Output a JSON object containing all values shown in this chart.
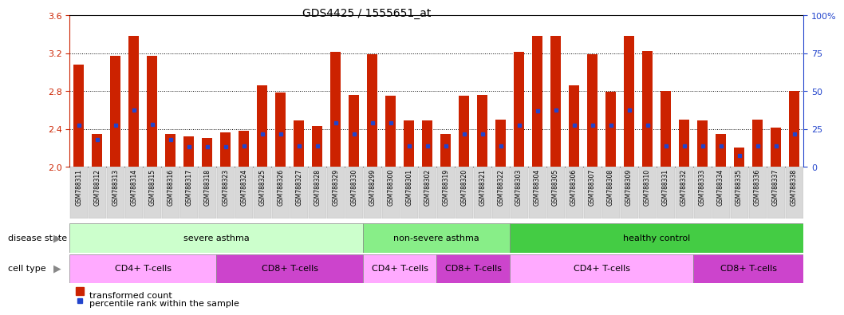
{
  "title": "GDS4425 / 1555651_at",
  "samples": [
    "GSM788311",
    "GSM788312",
    "GSM788313",
    "GSM788314",
    "GSM788315",
    "GSM788316",
    "GSM788317",
    "GSM788318",
    "GSM788323",
    "GSM788324",
    "GSM788325",
    "GSM788326",
    "GSM788327",
    "GSM788328",
    "GSM788329",
    "GSM788330",
    "GSM788299",
    "GSM788300",
    "GSM788301",
    "GSM788302",
    "GSM788319",
    "GSM788320",
    "GSM788321",
    "GSM788322",
    "GSM788303",
    "GSM788304",
    "GSM788305",
    "GSM788306",
    "GSM788307",
    "GSM788308",
    "GSM788309",
    "GSM788310",
    "GSM788331",
    "GSM788332",
    "GSM788333",
    "GSM788334",
    "GSM788335",
    "GSM788336",
    "GSM788337",
    "GSM788338"
  ],
  "bar_values": [
    3.08,
    2.35,
    3.17,
    3.38,
    3.17,
    2.35,
    2.32,
    2.3,
    2.36,
    2.38,
    2.86,
    2.78,
    2.49,
    2.43,
    3.21,
    2.76,
    3.19,
    2.75,
    2.49,
    2.49,
    2.35,
    2.75,
    2.76,
    2.5,
    3.21,
    3.38,
    3.38,
    2.86,
    3.19,
    2.79,
    3.38,
    3.22,
    2.8,
    2.5,
    2.49,
    2.35,
    2.2,
    2.5,
    2.41,
    2.8
  ],
  "percentile_values": [
    2.44,
    2.29,
    2.44,
    2.6,
    2.45,
    2.29,
    2.21,
    2.21,
    2.21,
    2.22,
    2.35,
    2.35,
    2.22,
    2.22,
    2.46,
    2.35,
    2.46,
    2.46,
    2.22,
    2.22,
    2.22,
    2.35,
    2.35,
    2.22,
    2.44,
    2.59,
    2.6,
    2.44,
    2.44,
    2.44,
    2.6,
    2.44,
    2.22,
    2.22,
    2.22,
    2.22,
    2.12,
    2.22,
    2.22,
    2.35
  ],
  "ylim_left": [
    2.0,
    3.6
  ],
  "ylim_right": [
    0,
    100
  ],
  "yticks_left": [
    2.0,
    2.4,
    2.8,
    3.2,
    3.6
  ],
  "yticks_right": [
    0,
    25,
    50,
    75,
    100
  ],
  "ytick_labels_right": [
    "0",
    "25",
    "50",
    "75",
    "100%"
  ],
  "bar_color": "#cc2200",
  "percentile_color": "#2244cc",
  "background_color": "#ffffff",
  "tick_label_bg": "#d8d8d8",
  "disease_state_groups": [
    {
      "label": "severe asthma",
      "start": 0,
      "end": 16,
      "color": "#ccffcc"
    },
    {
      "label": "non-severe asthma",
      "start": 16,
      "end": 24,
      "color": "#88ee88"
    },
    {
      "label": "healthy control",
      "start": 24,
      "end": 40,
      "color": "#44cc44"
    }
  ],
  "cell_type_groups": [
    {
      "label": "CD4+ T-cells",
      "start": 0,
      "end": 8,
      "color": "#ffaaff"
    },
    {
      "label": "CD8+ T-cells",
      "start": 8,
      "end": 16,
      "color": "#cc44cc"
    },
    {
      "label": "CD4+ T-cells",
      "start": 16,
      "end": 20,
      "color": "#ffaaff"
    },
    {
      "label": "CD8+ T-cells",
      "start": 20,
      "end": 24,
      "color": "#cc44cc"
    },
    {
      "label": "CD4+ T-cells",
      "start": 24,
      "end": 34,
      "color": "#ffaaff"
    },
    {
      "label": "CD8+ T-cells",
      "start": 34,
      "end": 40,
      "color": "#cc44cc"
    }
  ],
  "legend_labels": [
    "transformed count",
    "percentile rank within the sample"
  ],
  "legend_colors": [
    "#cc2200",
    "#2244cc"
  ],
  "base_value": 2.0,
  "bar_width": 0.55
}
